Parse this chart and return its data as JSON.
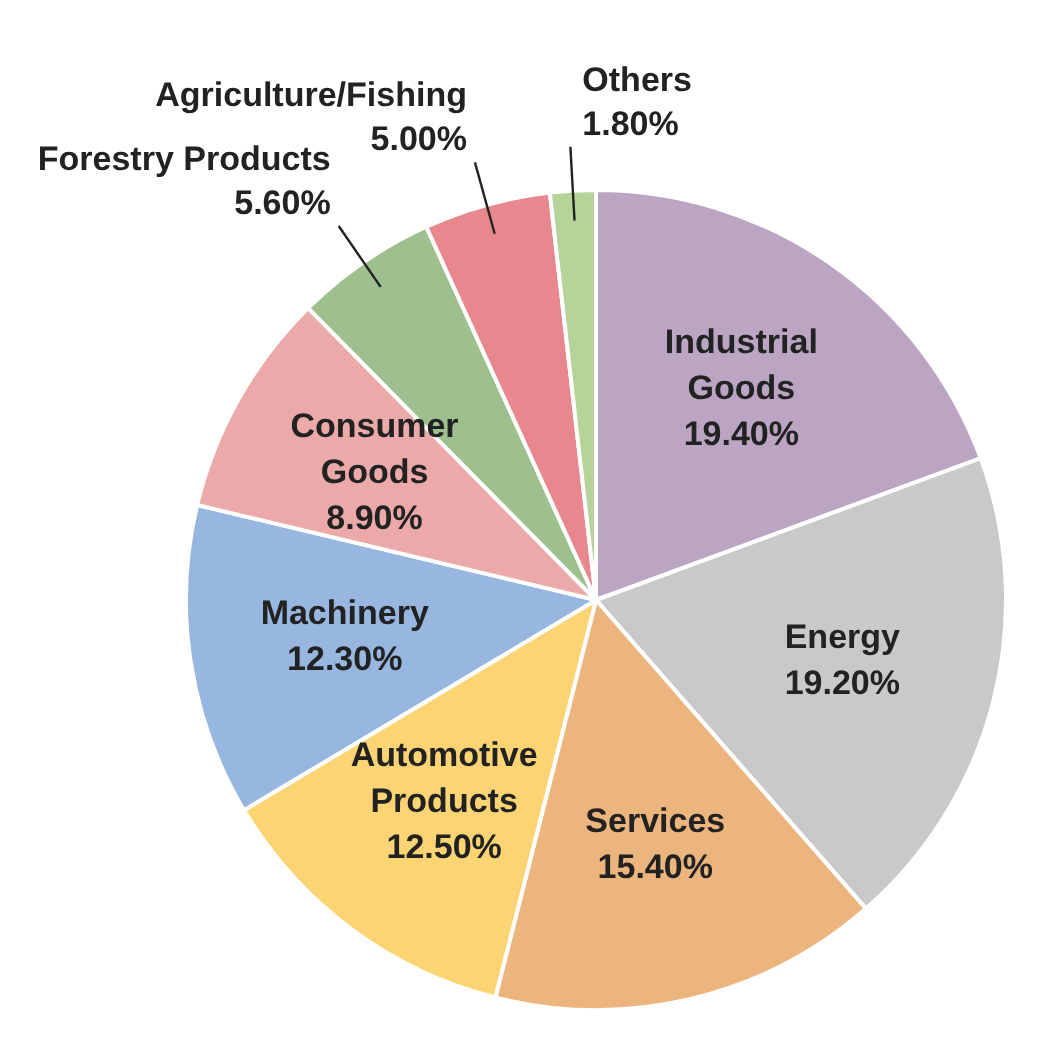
{
  "chart_data": {
    "type": "pie",
    "categories": [
      "Industrial Goods",
      "Energy",
      "Services",
      "Automotive Products",
      "Machinery",
      "Consumer Goods",
      "Forestry Products",
      "Agriculture/Fishing",
      "Others"
    ],
    "values": [
      19.4,
      19.2,
      15.4,
      12.5,
      12.3,
      8.9,
      5.6,
      5.0,
      1.8
    ],
    "value_labels": [
      "19.40%",
      "19.20%",
      "15.40%",
      "12.50%",
      "12.30%",
      "8.90%",
      "5.60%",
      "5.00%",
      "1.80%"
    ],
    "colors": [
      "#bba5c3",
      "#c9c9cb",
      "#edb57e",
      "#fcd473",
      "#97b7e0",
      "#eba9a9",
      "#9ebf8e",
      "#e8888e",
      "#b6d49a"
    ]
  }
}
